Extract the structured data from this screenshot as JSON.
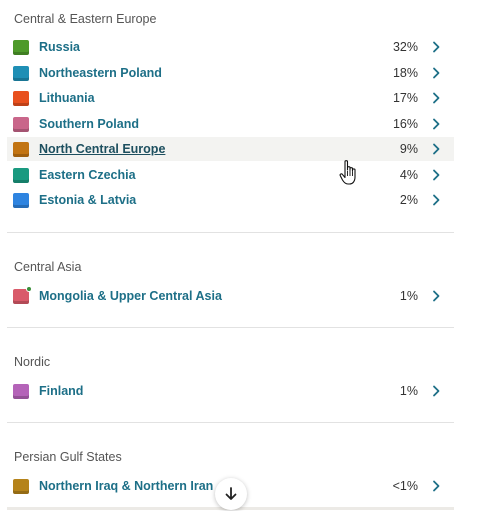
{
  "sections": [
    {
      "title": "Central & Eastern Europe",
      "rows": [
        {
          "label": "Russia",
          "pct": "32%",
          "color": "#4e9a2a"
        },
        {
          "label": "Northeastern Poland",
          "pct": "18%",
          "color": "#1f8fb5"
        },
        {
          "label": "Lithuania",
          "pct": "17%",
          "color": "#e8501e"
        },
        {
          "label": "Southern Poland",
          "pct": "16%",
          "color": "#c9668a"
        },
        {
          "label": "North Central Europe",
          "pct": "9%",
          "color": "#c27413"
        },
        {
          "label": "Eastern Czechia",
          "pct": "4%",
          "color": "#1a9a80"
        },
        {
          "label": "Estonia & Latvia",
          "pct": "2%",
          "color": "#2e84e0"
        }
      ]
    },
    {
      "title": "Central Asia",
      "rows": [
        {
          "label": "Mongolia & Upper Central Asia",
          "pct": "1%",
          "color": "#d95b6a"
        }
      ]
    },
    {
      "title": "Nordic",
      "rows": [
        {
          "label": "Finland",
          "pct": "1%",
          "color": "#b463b8"
        }
      ]
    },
    {
      "title": "Persian Gulf States",
      "rows": [
        {
          "label": "Northern Iraq & Northern Iran",
          "pct": "<1%",
          "color": "#b5831a"
        }
      ]
    }
  ],
  "icons": {
    "chevron": "chevron-right-icon",
    "scroll": "arrow-down-icon",
    "cursor": "hand-pointer-icon"
  },
  "colors": {
    "label": "#1d6f87",
    "chevron": "#1d6f87"
  }
}
